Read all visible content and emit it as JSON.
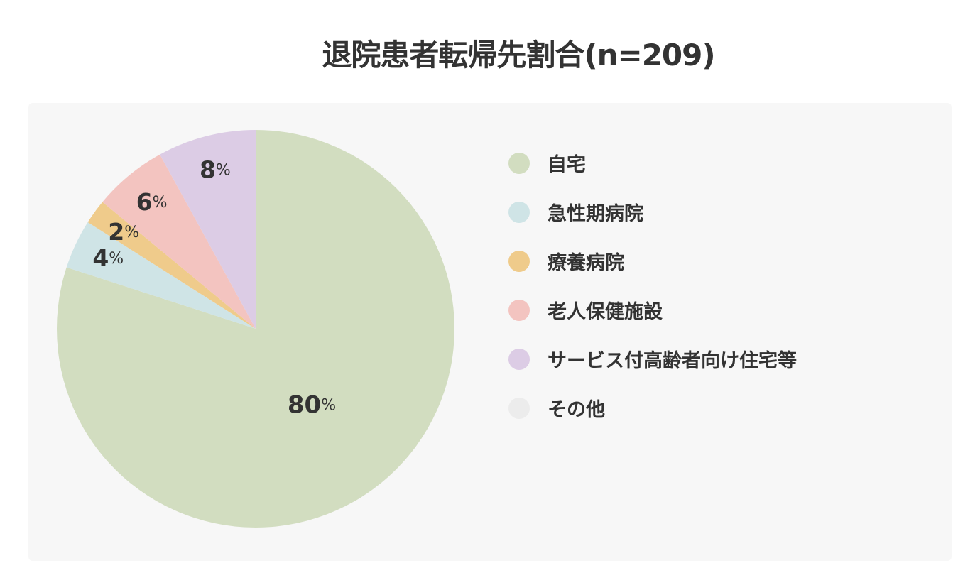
{
  "title": "退院患者転帰先割合(n=209)",
  "chart_data": {
    "type": "pie",
    "title": "退院患者転帰先割合(n=209)",
    "unit": "%",
    "categories": [
      "自宅",
      "急性期病院",
      "療養病院",
      "老人保健施設",
      "サービス付高齢者向け住宅等",
      "その他"
    ],
    "values": [
      80,
      4,
      2,
      6,
      8,
      0
    ],
    "colors": [
      "#d2ddc0",
      "#cfe4e6",
      "#efcb8b",
      "#f3c4c0",
      "#dccce5",
      "#ececec"
    ],
    "legend": "right"
  }
}
